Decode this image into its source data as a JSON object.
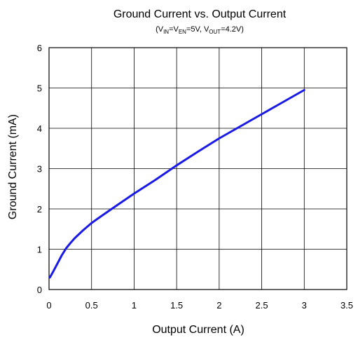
{
  "chart_data": {
    "type": "line",
    "title": "Ground Current vs. Output Current",
    "subtitle": {
      "vin_main": "V",
      "vin_sub": "IN",
      "ven_main": "=V",
      "ven_sub": "EN",
      "mid": "=5V, V",
      "vout_sub": "OUT",
      "tail": "=4.2V",
      "open": "(",
      "close": ")"
    },
    "xlabel": "Output Current (A)",
    "ylabel": "Ground Current (mA)",
    "xlim": [
      0,
      3.5
    ],
    "ylim": [
      0,
      6
    ],
    "x_ticks": [
      "0",
      "0.5",
      "1",
      "1.5",
      "2",
      "2.5",
      "3",
      "3.5"
    ],
    "y_ticks": [
      "0",
      "1",
      "2",
      "3",
      "4",
      "5",
      "6"
    ],
    "grid": true,
    "line_color": "#1a1ae6",
    "series": [
      {
        "x": [
          0.01,
          0.05,
          0.1,
          0.15,
          0.2,
          0.25,
          0.3,
          0.4,
          0.5,
          0.6,
          0.75,
          1.0,
          1.25,
          1.5,
          1.75,
          2.0,
          2.25,
          2.5,
          2.75,
          3.0
        ],
        "y": [
          0.3,
          0.45,
          0.65,
          0.85,
          1.02,
          1.15,
          1.27,
          1.47,
          1.65,
          1.8,
          2.02,
          2.38,
          2.72,
          3.08,
          3.42,
          3.75,
          4.05,
          4.35,
          4.65,
          4.95
        ]
      }
    ]
  }
}
